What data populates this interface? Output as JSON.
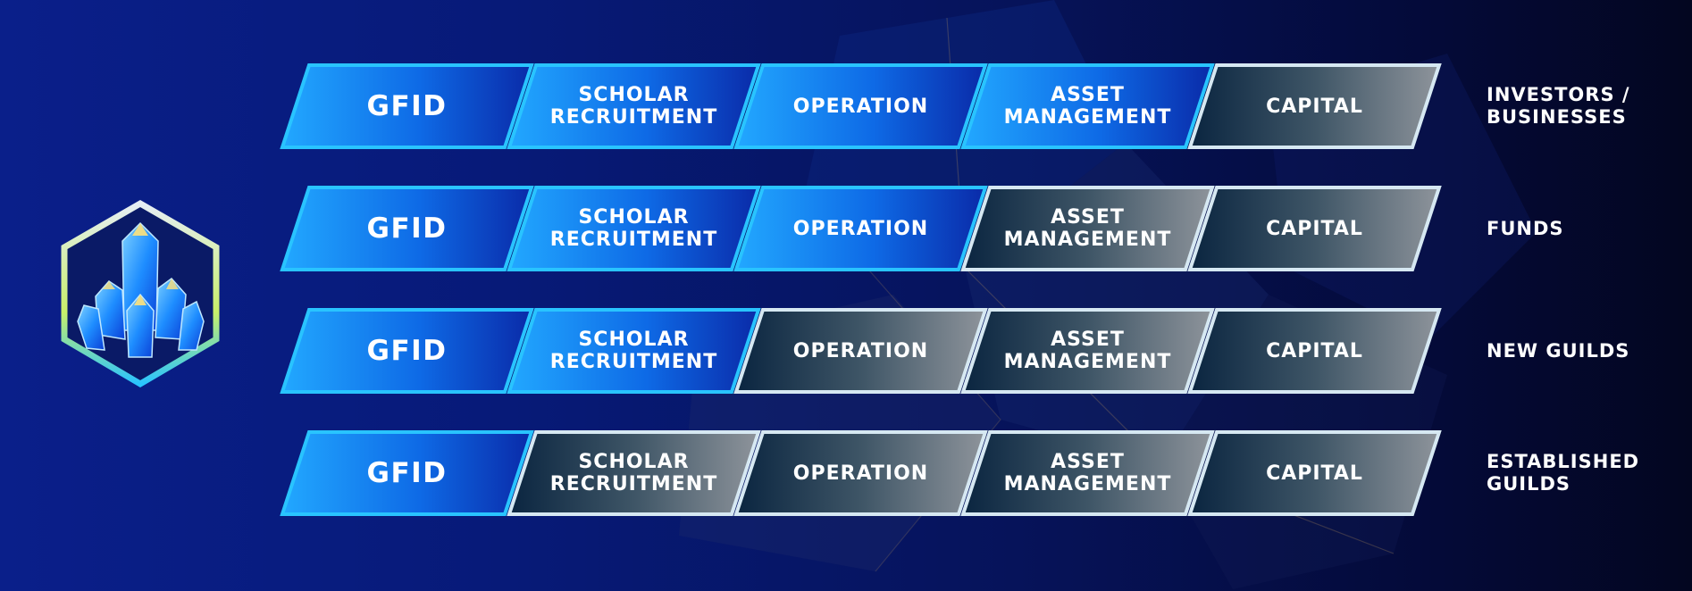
{
  "colors": {
    "active_fill_light": "#1a9bff",
    "active_fill_dark": "#0b2fb0",
    "inactive_fill_light": "#8a9098",
    "inactive_fill_dark": "#0b2a44",
    "active_border": "#29c4ff",
    "inactive_border": "#d6e8f2",
    "accent_glow": "#ffe27a"
  },
  "logo": {
    "icon": "crystal-cluster-icon"
  },
  "rows": [
    {
      "label": "INVESTORS / BUSINESSES",
      "cells": [
        {
          "text": "GFID",
          "active": true
        },
        {
          "text": "SCHOLAR RECRUITMENT",
          "active": true
        },
        {
          "text": "OPERATION",
          "active": true
        },
        {
          "text": "ASSET MANAGEMENT",
          "active": true
        },
        {
          "text": "CAPITAL",
          "active": false
        }
      ]
    },
    {
      "label": "FUNDS",
      "cells": [
        {
          "text": "GFID",
          "active": true
        },
        {
          "text": "SCHOLAR RECRUITMENT",
          "active": true
        },
        {
          "text": "OPERATION",
          "active": true
        },
        {
          "text": "ASSET MANAGEMENT",
          "active": false
        },
        {
          "text": "CAPITAL",
          "active": false
        }
      ]
    },
    {
      "label": "NEW GUILDS",
      "cells": [
        {
          "text": "GFID",
          "active": true
        },
        {
          "text": "SCHOLAR RECRUITMENT",
          "active": true
        },
        {
          "text": "OPERATION",
          "active": false
        },
        {
          "text": "ASSET MANAGEMENT",
          "active": false
        },
        {
          "text": "CAPITAL",
          "active": false
        }
      ]
    },
    {
      "label": "ESTABLISHED GUILDS",
      "cells": [
        {
          "text": "GFID",
          "active": true
        },
        {
          "text": "SCHOLAR RECRUITMENT",
          "active": false
        },
        {
          "text": "OPERATION",
          "active": false
        },
        {
          "text": "ASSET MANAGEMENT",
          "active": false
        },
        {
          "text": "CAPITAL",
          "active": false
        }
      ]
    }
  ]
}
